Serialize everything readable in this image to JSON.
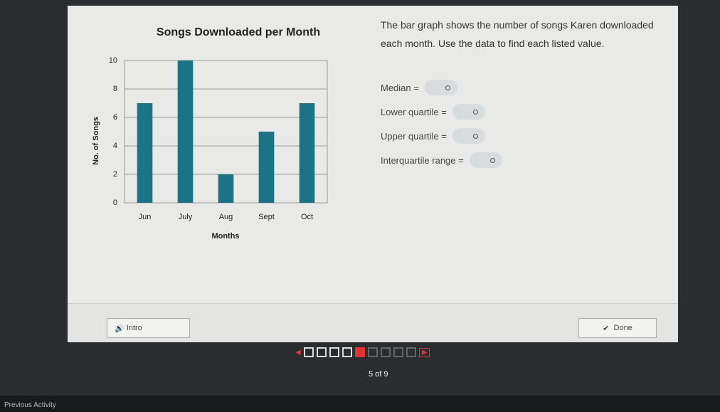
{
  "chart_data": {
    "type": "bar",
    "title": "Songs Downloaded per Month",
    "x_label": "Months",
    "y_label": "No. of Songs",
    "categories": [
      "Jun",
      "July",
      "Aug",
      "Sept",
      "Oct"
    ],
    "values": [
      7,
      10,
      2,
      5,
      7
    ],
    "color": "#1b7385",
    "ylim": [
      0,
      10
    ],
    "yticks": [
      0,
      2,
      4,
      6,
      8,
      10
    ],
    "grid": true
  },
  "prompt": "The bar graph shows the number of songs Karen downloaded each month. Use the data to find each listed value.",
  "fields": [
    "Median =",
    "Lower quartile =",
    "Upper quartile =",
    "Interquartile range ="
  ],
  "footer": {
    "intro": "Intro",
    "done": "Done",
    "progress": "5 of 9",
    "previous": "Previous Activity"
  }
}
